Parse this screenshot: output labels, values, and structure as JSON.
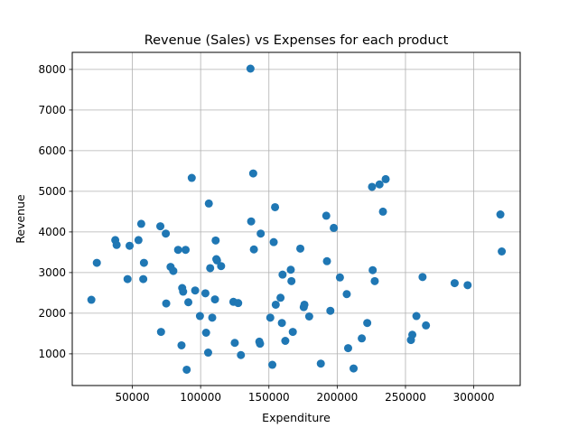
{
  "chart_data": {
    "type": "scatter",
    "title": "Revenue (Sales) vs Expenses for each product",
    "xlabel": "Expenditure",
    "ylabel": "Revenue",
    "xlim": [
      6000,
      334000
    ],
    "ylim": [
      220,
      8420
    ],
    "xticks": [
      50000,
      100000,
      150000,
      200000,
      250000,
      300000
    ],
    "yticks": [
      1000,
      2000,
      3000,
      4000,
      5000,
      6000,
      7000,
      8000
    ],
    "grid": true,
    "marker_color": "#1f77b4",
    "series": [
      {
        "points": [
          [
            20000,
            2330
          ],
          [
            24000,
            3240
          ],
          [
            37500,
            3800
          ],
          [
            38500,
            3680
          ],
          [
            46500,
            2840
          ],
          [
            48000,
            3660
          ],
          [
            54500,
            3800
          ],
          [
            56500,
            4200
          ],
          [
            58000,
            2840
          ],
          [
            58500,
            3240
          ],
          [
            70500,
            4140
          ],
          [
            71000,
            1540
          ],
          [
            74500,
            3960
          ],
          [
            74800,
            2240
          ],
          [
            78000,
            3140
          ],
          [
            80000,
            3040
          ],
          [
            83500,
            3560
          ],
          [
            86000,
            1210
          ],
          [
            86500,
            2620
          ],
          [
            87200,
            2530
          ],
          [
            89000,
            3560
          ],
          [
            89800,
            610
          ],
          [
            91000,
            2270
          ],
          [
            93500,
            5330
          ],
          [
            96000,
            2560
          ],
          [
            99500,
            1930
          ],
          [
            103500,
            2490
          ],
          [
            104000,
            1520
          ],
          [
            105500,
            1030
          ],
          [
            106000,
            4700
          ],
          [
            107000,
            3110
          ],
          [
            108500,
            1890
          ],
          [
            110500,
            2340
          ],
          [
            111000,
            3790
          ],
          [
            111500,
            3330
          ],
          [
            112000,
            3300
          ],
          [
            115000,
            3160
          ],
          [
            124000,
            2280
          ],
          [
            125000,
            1270
          ],
          [
            127500,
            2250
          ],
          [
            129500,
            970
          ],
          [
            136500,
            8020
          ],
          [
            137000,
            4260
          ],
          [
            138500,
            5440
          ],
          [
            139000,
            3570
          ],
          [
            143000,
            1300
          ],
          [
            143500,
            1250
          ],
          [
            144000,
            3960
          ],
          [
            151000,
            1890
          ],
          [
            152500,
            730
          ],
          [
            153500,
            3750
          ],
          [
            154500,
            4610
          ],
          [
            155000,
            2210
          ],
          [
            158500,
            2380
          ],
          [
            159500,
            1760
          ],
          [
            160000,
            2950
          ],
          [
            162000,
            1320
          ],
          [
            166000,
            3070
          ],
          [
            166500,
            2790
          ],
          [
            167500,
            1540
          ],
          [
            173000,
            3590
          ],
          [
            175500,
            2150
          ],
          [
            176000,
            2210
          ],
          [
            179500,
            1920
          ],
          [
            188000,
            760
          ],
          [
            192000,
            4400
          ],
          [
            192500,
            3280
          ],
          [
            195000,
            2060
          ],
          [
            197500,
            4100
          ],
          [
            202000,
            2880
          ],
          [
            207000,
            2470
          ],
          [
            208000,
            1140
          ],
          [
            212000,
            640
          ],
          [
            218000,
            1380
          ],
          [
            222000,
            1760
          ],
          [
            225500,
            5110
          ],
          [
            226000,
            3060
          ],
          [
            227500,
            2790
          ],
          [
            231000,
            5170
          ],
          [
            233500,
            4500
          ],
          [
            235500,
            5300
          ],
          [
            254000,
            1340
          ],
          [
            255000,
            1470
          ],
          [
            258000,
            1930
          ],
          [
            262500,
            2890
          ],
          [
            265000,
            1700
          ],
          [
            286000,
            2740
          ],
          [
            295500,
            2690
          ],
          [
            319500,
            4430
          ],
          [
            320500,
            3520
          ]
        ]
      }
    ]
  }
}
